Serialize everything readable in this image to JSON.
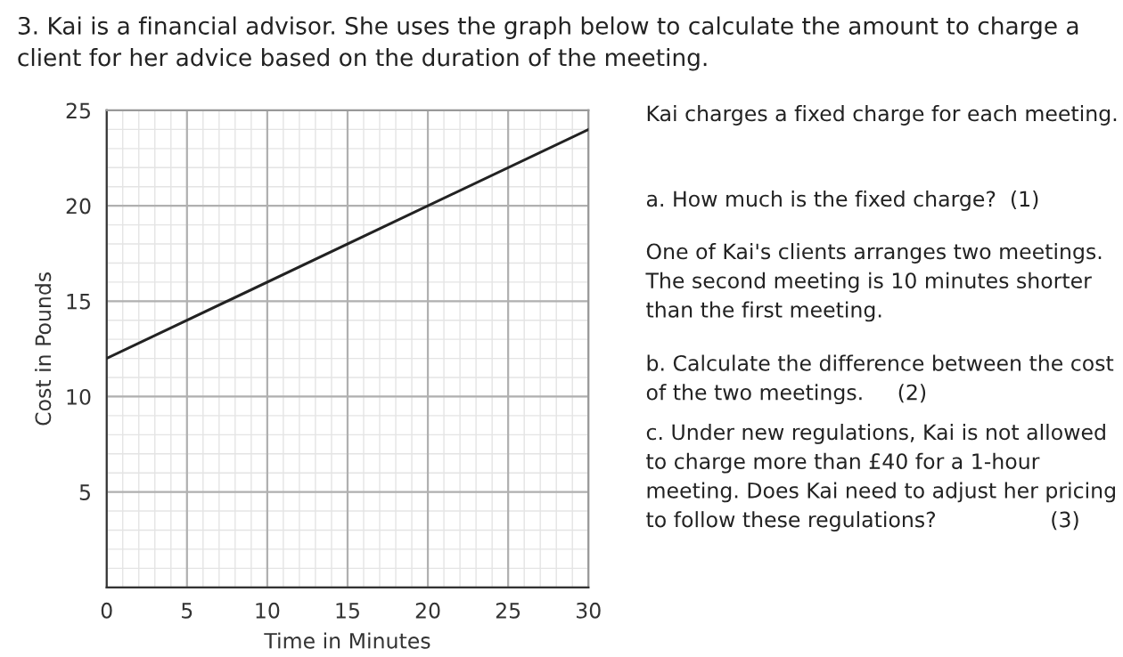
{
  "chart_data": {
    "type": "line",
    "title": "3. Kai is a financial advisor. She uses the graph below to calculate the amount to charge a client for her advice based on the duration of the meeting.",
    "xlabel": "Time in Minutes",
    "ylabel": "Cost in Pounds",
    "x": [
      0,
      30
    ],
    "series": [
      {
        "color": "#222222",
        "values": [
          12,
          24
        ]
      }
    ],
    "xlim": [
      0,
      30
    ],
    "ylim": [
      0,
      25
    ],
    "xticks": [
      0,
      5,
      10,
      15,
      20,
      25,
      30
    ],
    "yticks": [
      {
        "value": 0,
        "label": null
      },
      5,
      10,
      15,
      20,
      25
    ],
    "grid": true,
    "legend": false,
    "marker": "none",
    "line_style": "solid",
    "annotations": [
      "Kai charges a fixed charge for each meeting.",
      "a. How much is the fixed charge?  (1)",
      "One of Kai's clients arranges two meetings. The second meeting is 10 minutes shorter than the first meeting.",
      "b. Calculate the difference between the cost of the two meetings.     (2)",
      "c. Under new regulations, Kai is not allowed to charge more than £40 for a 1-hour meeting. Does Kai need to adjust her pricing to follow these regulations?                 (3)"
    ]
  }
}
